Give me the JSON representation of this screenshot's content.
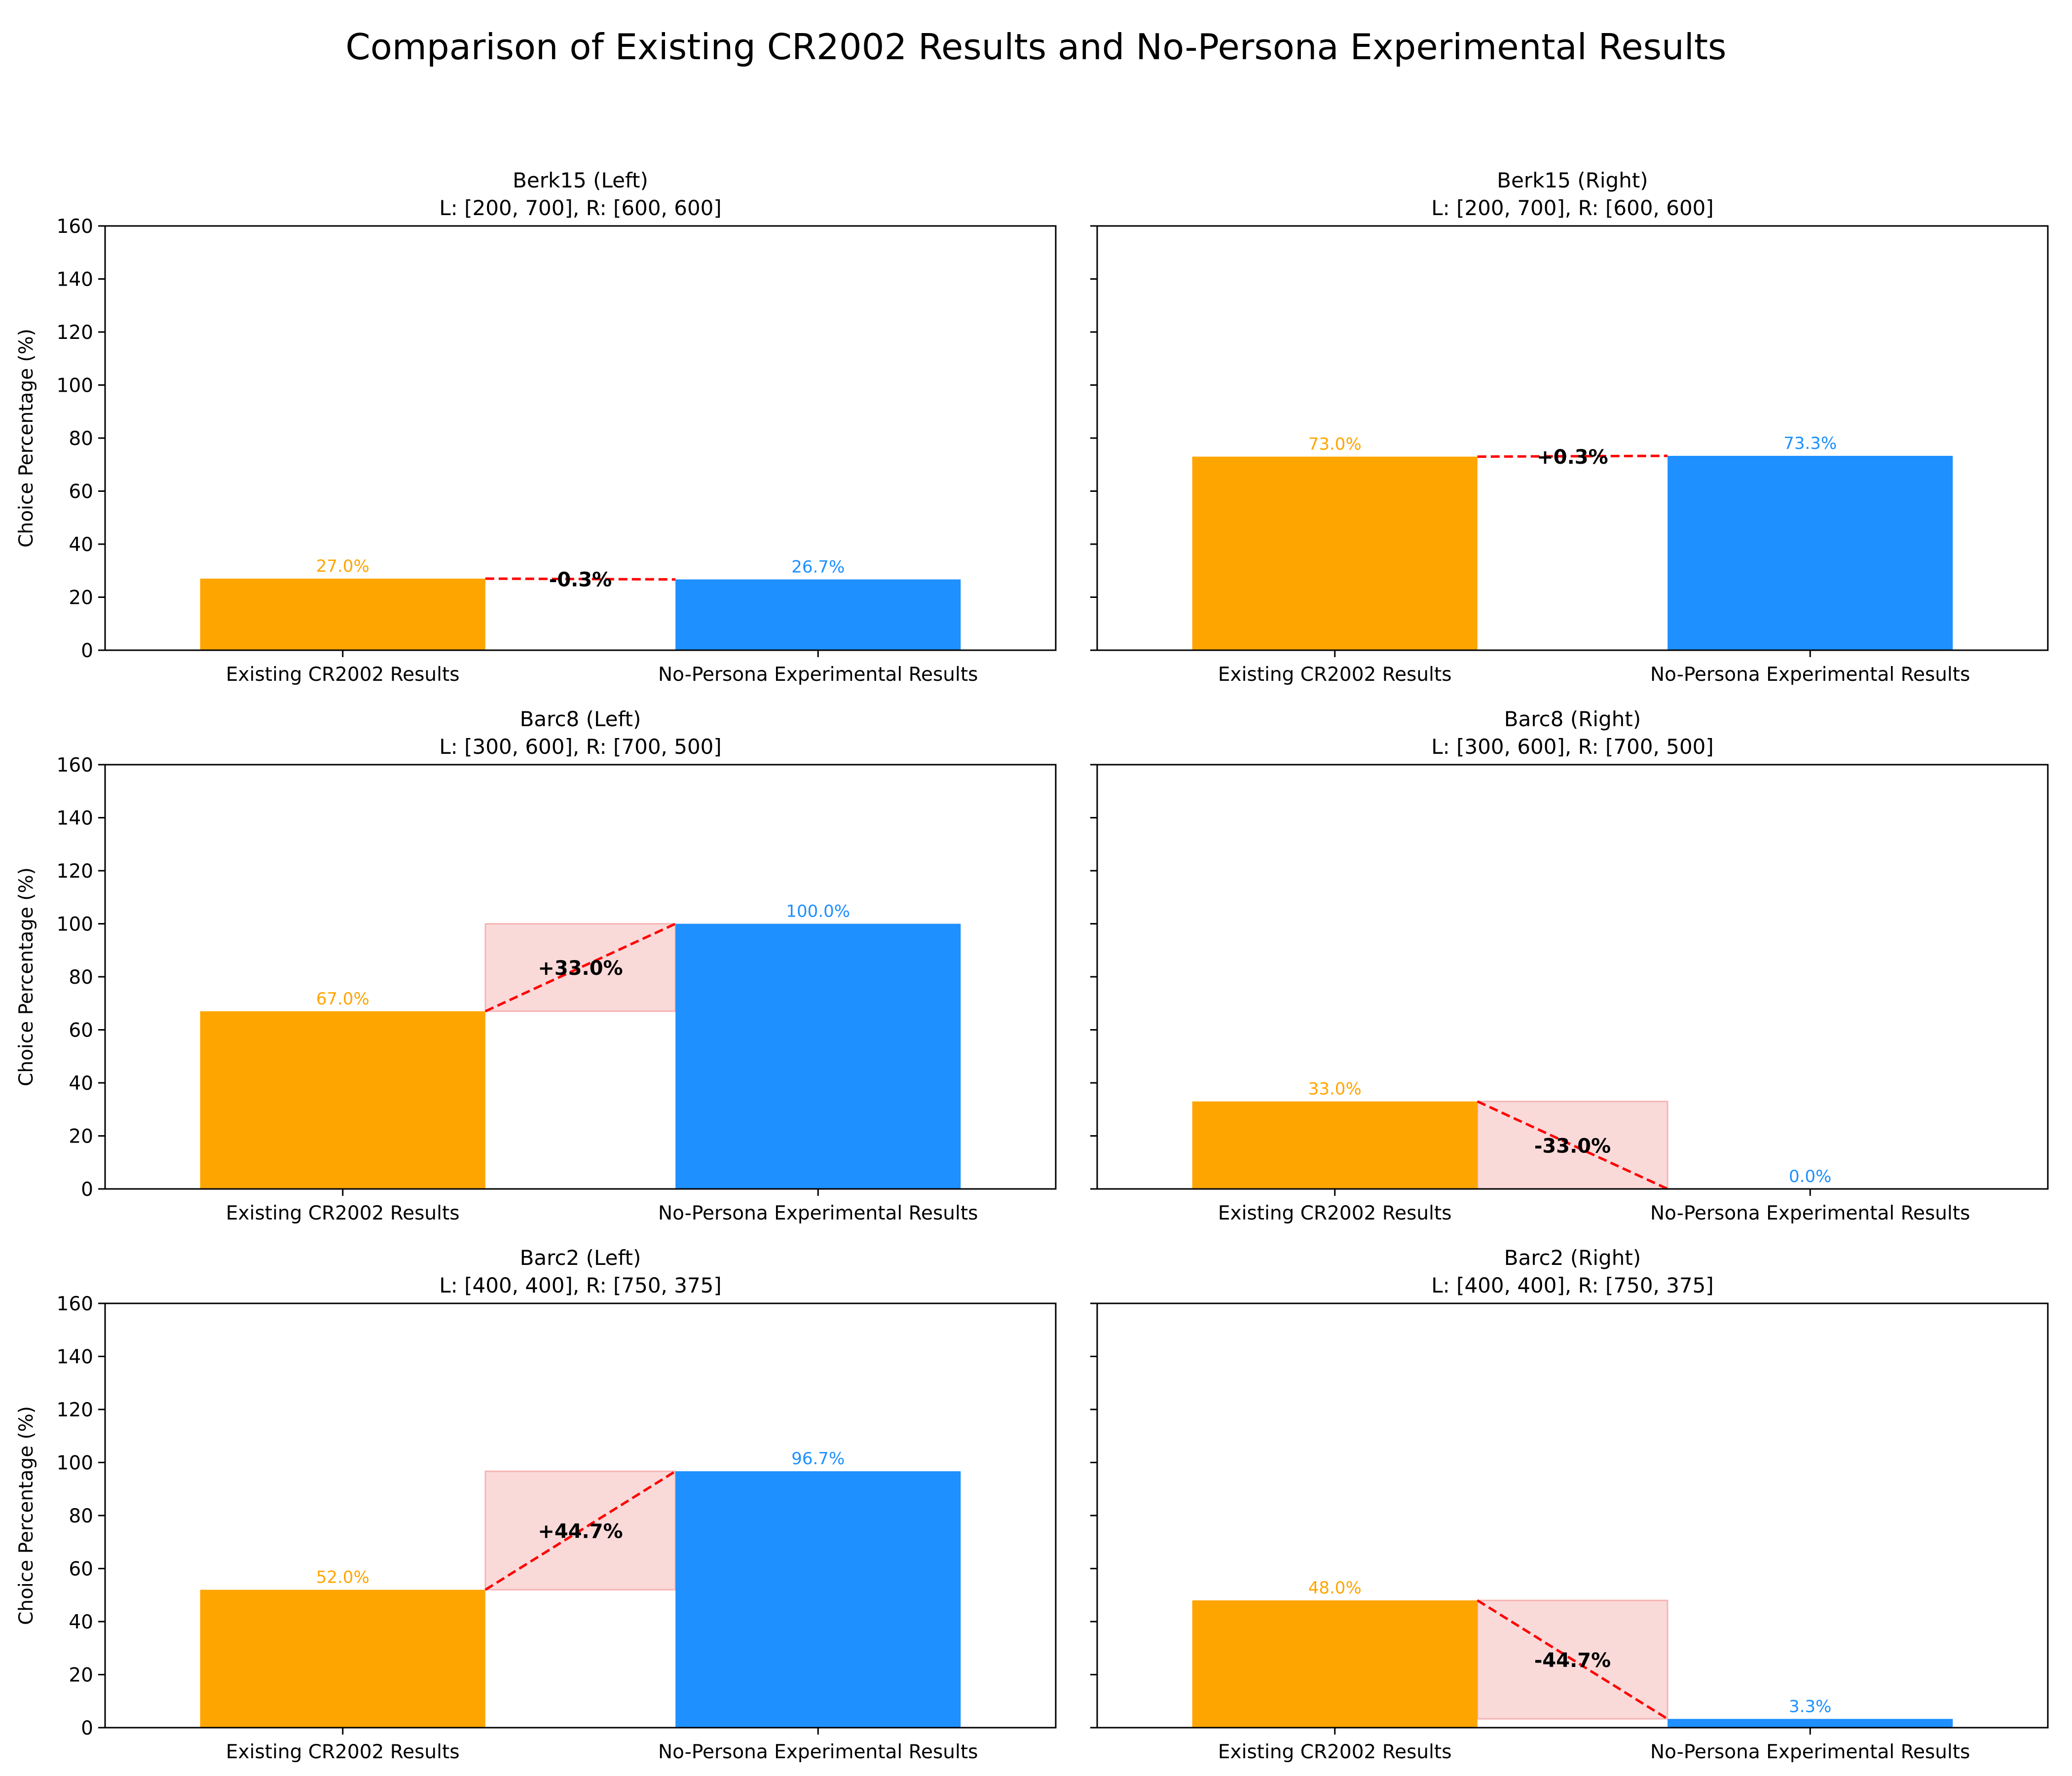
{
  "figure": {
    "title": "Comparison of Existing CR2002 Results and No-Persona Experimental Results"
  },
  "colors": {
    "existing": "#FFA500",
    "experimental": "#1E90FF",
    "connector": "#FF0000",
    "band": "#F08080"
  },
  "chart_data": [
    {
      "type": "bar",
      "title": "Berk15 (Left)",
      "subtitle": "L: [200, 700], R: [600, 600]",
      "categories": [
        "Existing CR2002 Results",
        "No-Persona Experimental Results"
      ],
      "values": [
        27.0,
        26.7
      ],
      "value_labels": [
        "27.0%",
        "26.7%"
      ],
      "diff_label": "-0.3%",
      "ylabel": "Choice Percentage (%)",
      "ylim": [
        0,
        160
      ],
      "yticks": [
        0,
        20,
        40,
        60,
        80,
        100,
        120,
        140,
        160
      ],
      "grid": false
    },
    {
      "type": "bar",
      "title": "Berk15 (Right)",
      "subtitle": "L: [200, 700], R: [600, 600]",
      "categories": [
        "Existing CR2002 Results",
        "No-Persona Experimental Results"
      ],
      "values": [
        73.0,
        73.3
      ],
      "value_labels": [
        "73.0%",
        "73.3%"
      ],
      "diff_label": "+0.3%",
      "ylabel": "",
      "ylim": [
        0,
        160
      ],
      "yticks": [
        0,
        20,
        40,
        60,
        80,
        100,
        120,
        140,
        160
      ],
      "grid": false
    },
    {
      "type": "bar",
      "title": "Barc8 (Left)",
      "subtitle": "L: [300, 600], R: [700, 500]",
      "categories": [
        "Existing CR2002 Results",
        "No-Persona Experimental Results"
      ],
      "values": [
        67.0,
        100.0
      ],
      "value_labels": [
        "67.0%",
        "100.0%"
      ],
      "diff_label": "+33.0%",
      "ylabel": "Choice Percentage (%)",
      "ylim": [
        0,
        160
      ],
      "yticks": [
        0,
        20,
        40,
        60,
        80,
        100,
        120,
        140,
        160
      ],
      "grid": false
    },
    {
      "type": "bar",
      "title": "Barc8 (Right)",
      "subtitle": "L: [300, 600], R: [700, 500]",
      "categories": [
        "Existing CR2002 Results",
        "No-Persona Experimental Results"
      ],
      "values": [
        33.0,
        0.0
      ],
      "value_labels": [
        "33.0%",
        "0.0%"
      ],
      "diff_label": "-33.0%",
      "ylabel": "",
      "ylim": [
        0,
        160
      ],
      "yticks": [
        0,
        20,
        40,
        60,
        80,
        100,
        120,
        140,
        160
      ],
      "grid": false
    },
    {
      "type": "bar",
      "title": "Barc2 (Left)",
      "subtitle": "L: [400, 400], R: [750, 375]",
      "categories": [
        "Existing CR2002 Results",
        "No-Persona Experimental Results"
      ],
      "values": [
        52.0,
        96.7
      ],
      "value_labels": [
        "52.0%",
        "96.7%"
      ],
      "diff_label": "+44.7%",
      "ylabel": "Choice Percentage (%)",
      "ylim": [
        0,
        160
      ],
      "yticks": [
        0,
        20,
        40,
        60,
        80,
        100,
        120,
        140,
        160
      ],
      "grid": false
    },
    {
      "type": "bar",
      "title": "Barc2 (Right)",
      "subtitle": "L: [400, 400], R: [750, 375]",
      "categories": [
        "Existing CR2002 Results",
        "No-Persona Experimental Results"
      ],
      "values": [
        48.0,
        3.3
      ],
      "value_labels": [
        "48.0%",
        "3.3%"
      ],
      "diff_label": "-44.7%",
      "ylabel": "",
      "ylim": [
        0,
        160
      ],
      "yticks": [
        0,
        20,
        40,
        60,
        80,
        100,
        120,
        140,
        160
      ],
      "grid": false
    }
  ]
}
